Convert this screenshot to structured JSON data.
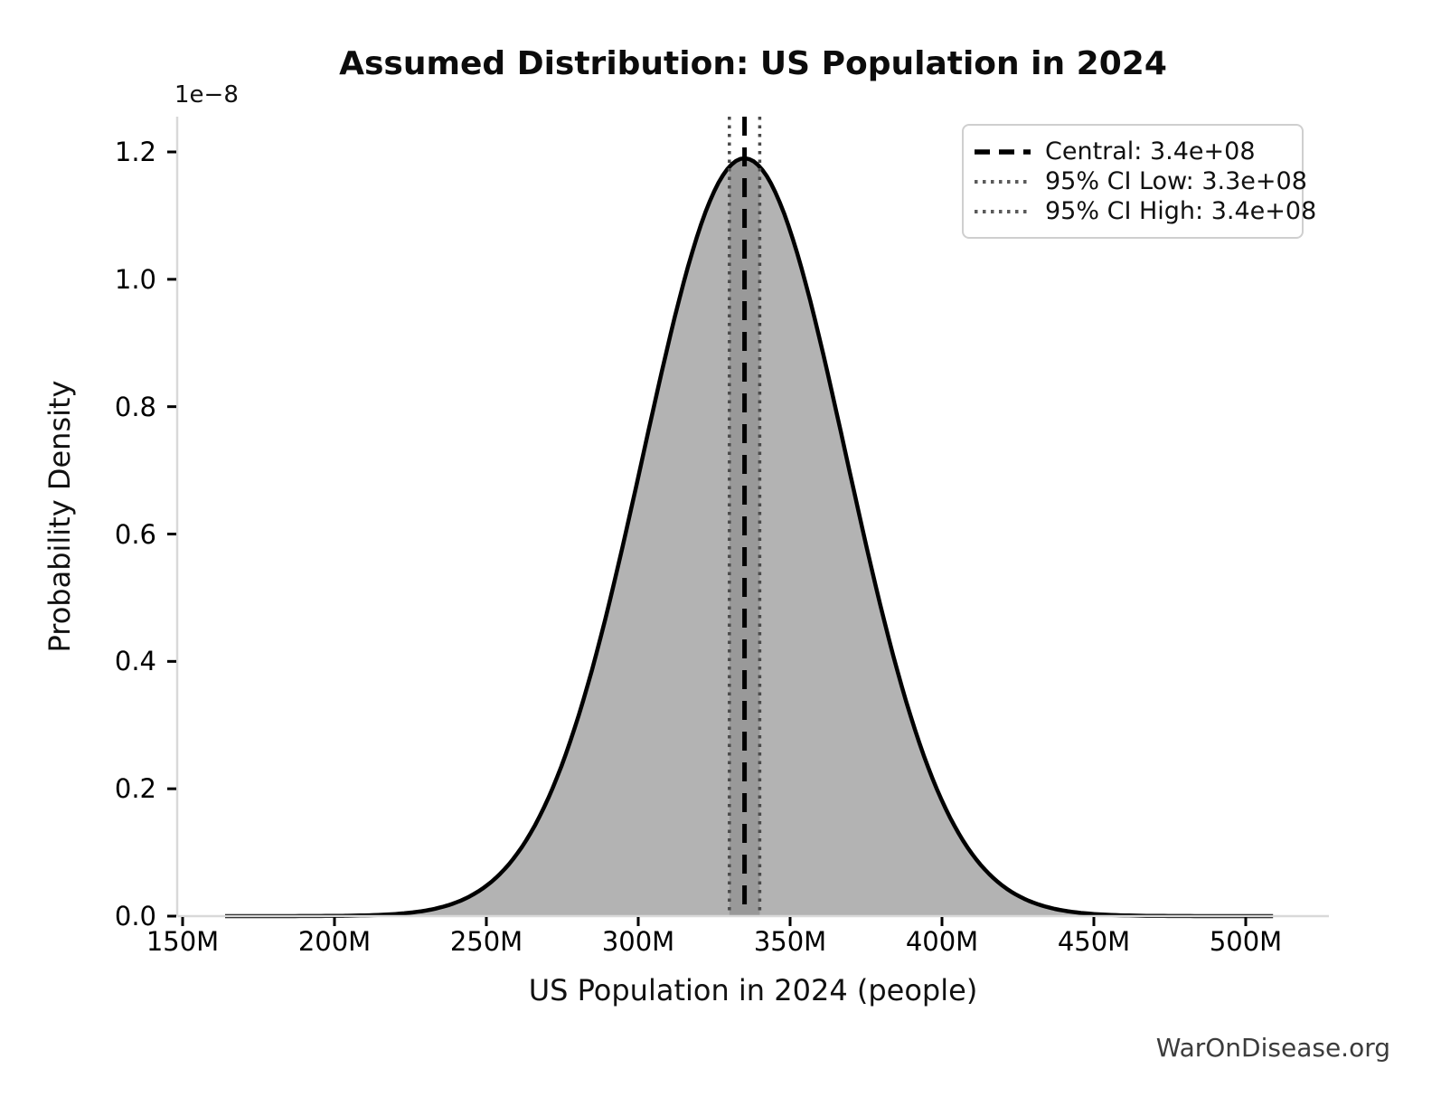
{
  "title": "Assumed Distribution: US Population in 2024",
  "watermark": "WarOnDisease.org",
  "chart_data": {
    "type": "area",
    "title": "Assumed Distribution: US Population in 2024",
    "xlabel": "US Population in 2024 (people)",
    "ylabel": "Probability Density",
    "y_scale_offset_label": "1e−8",
    "x_tick_values": [
      150000000,
      200000000,
      250000000,
      300000000,
      350000000,
      400000000,
      450000000,
      500000000
    ],
    "x_tick_labels": [
      "150M",
      "200M",
      "250M",
      "300M",
      "350M",
      "400M",
      "450M",
      "500M"
    ],
    "y_tick_values_e8": [
      0.0,
      0.2,
      0.4,
      0.6,
      0.8,
      1.0,
      1.2
    ],
    "y_tick_labels": [
      "0.0",
      "0.2",
      "0.4",
      "0.6",
      "0.8",
      "1.0",
      "1.2"
    ],
    "ylim": [
      0,
      1.25e-08
    ],
    "grid": false,
    "legend_position": "upper right",
    "distribution": {
      "shape": "normal",
      "mean": 335000000,
      "sigma": 33500000,
      "peak_density": 1.19e-08,
      "x_min": 164000000,
      "x_max": 509000000
    },
    "markers": {
      "central": {
        "value": 335000000,
        "label": "Central: 3.4e+08",
        "style": "dashed"
      },
      "ci_low": {
        "value": 330000000,
        "label": "95% CI Low: 3.3e+08",
        "style": "dotted"
      },
      "ci_high": {
        "value": 340000000,
        "label": "95% CI High: 3.4e+08",
        "style": "dotted"
      }
    },
    "colors": {
      "curve": "#000000",
      "fill": "#b3b3b3",
      "ci_band": "#999999",
      "central_line": "#000000",
      "ci_line": "#4a4a4a",
      "spine": "#d9d9d9",
      "tick": "#000000",
      "text": "#111111",
      "watermark": "#3c3c3c"
    }
  },
  "legend": {
    "items": [
      {
        "label": "Central: 3.4e+08",
        "style": "dashed",
        "color": "#000000"
      },
      {
        "label": "95% CI Low: 3.3e+08",
        "style": "dotted",
        "color": "#5a5a5a"
      },
      {
        "label": "95% CI High: 3.4e+08",
        "style": "dotted",
        "color": "#5a5a5a"
      }
    ]
  }
}
